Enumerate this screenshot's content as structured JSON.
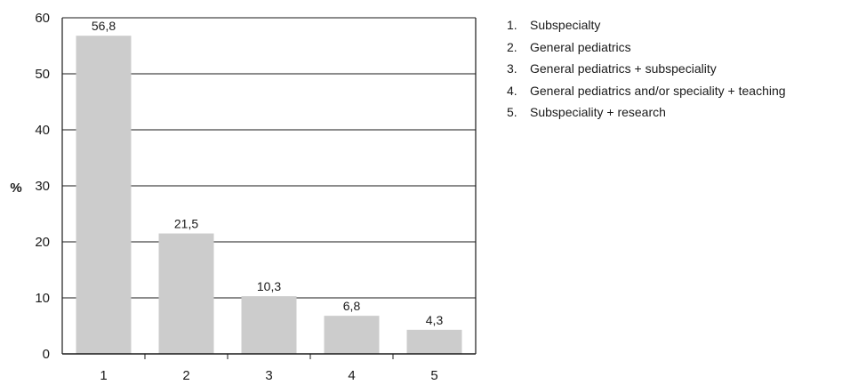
{
  "chart_data": {
    "type": "bar",
    "categories": [
      "1",
      "2",
      "3",
      "4",
      "5"
    ],
    "values": [
      56.8,
      21.5,
      10.3,
      6.8,
      4.3
    ],
    "value_labels": [
      "56,8",
      "21,5",
      "10,3",
      "6,8",
      "4,3"
    ],
    "title": "",
    "xlabel": "",
    "ylabel": "%",
    "ylim": [
      0,
      60
    ],
    "yticks": [
      0,
      10,
      20,
      30,
      40,
      50,
      60
    ],
    "grid": true,
    "bar_color": "#cccccc",
    "legend_position": "right",
    "legend": [
      {
        "number": "1.",
        "label": "Subspecialty"
      },
      {
        "number": "2.",
        "label": "General pediatrics"
      },
      {
        "number": "3.",
        "label": "General pediatrics + subspeciality"
      },
      {
        "number": "4.",
        "label": "General pediatrics and/or speciality + teaching"
      },
      {
        "number": "5.",
        "label": "Subspeciality + research"
      }
    ]
  }
}
